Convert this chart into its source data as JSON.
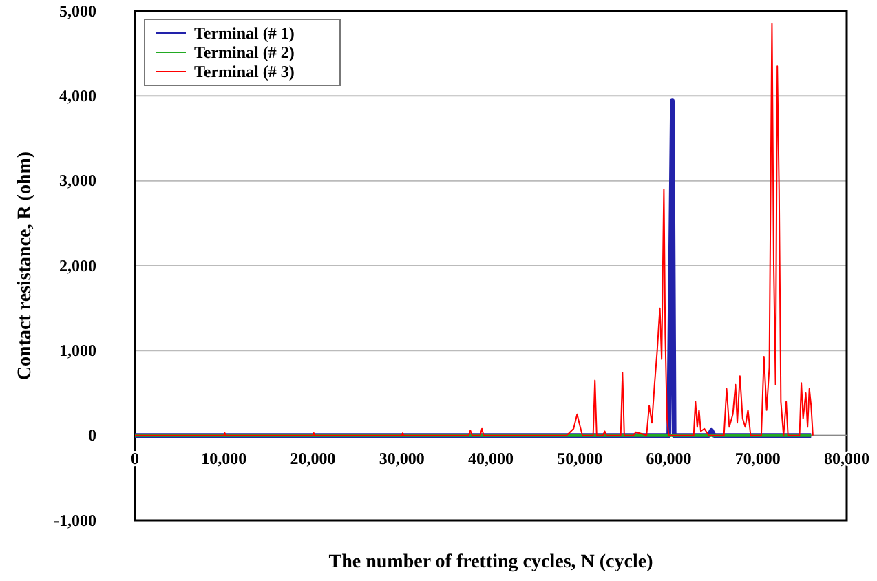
{
  "chart_data": {
    "type": "line",
    "xlabel": "The number of fretting cycles, N (cycle)",
    "ylabel": "Contact resistance, R (ohm)",
    "xlim": [
      0,
      80000
    ],
    "xticks": [
      {
        "value": 0,
        "label": "0"
      },
      {
        "value": 10000,
        "label": "10,000"
      },
      {
        "value": 20000,
        "label": "20,000"
      },
      {
        "value": 30000,
        "label": "30,000"
      },
      {
        "value": 40000,
        "label": "40,000"
      },
      {
        "value": 50000,
        "label": "50,000"
      },
      {
        "value": 60000,
        "label": "60,000"
      },
      {
        "value": 70000,
        "label": "70,000"
      },
      {
        "value": 80000,
        "label": "80,000"
      }
    ],
    "ylim": [
      -1000,
      5000
    ],
    "yticks": [
      {
        "value": -1000,
        "label": "-1,000"
      },
      {
        "value": 0,
        "label": "0"
      },
      {
        "value": 1000,
        "label": "1,000"
      },
      {
        "value": 2000,
        "label": "2,000"
      },
      {
        "value": 3000,
        "label": "3,000"
      },
      {
        "value": 4000,
        "label": "4,000"
      },
      {
        "value": 5000,
        "label": "5,000"
      }
    ],
    "grid": "y",
    "legend": "top left",
    "marker": "none",
    "line_style": "solid",
    "series": [
      {
        "name": "Terminal (# 1)",
        "color": "#2222aa",
        "x": [
          0,
          60000,
          60400,
          60600,
          64500,
          64800,
          65100,
          76000
        ],
        "values": [
          0,
          0,
          3940,
          0,
          0,
          60,
          0,
          0
        ]
      },
      {
        "name": "Terminal (# 2)",
        "color": "#22aa22",
        "x": [
          0,
          76000
        ],
        "values": [
          0,
          0
        ]
      },
      {
        "name": "Terminal (# 3)",
        "color": "#ff0000",
        "x": [
          0,
          10000,
          10100,
          10200,
          20000,
          20100,
          20200,
          30000,
          30100,
          30200,
          37500,
          37700,
          37900,
          38800,
          39000,
          39200,
          48500,
          49300,
          49700,
          50000,
          50300,
          51500,
          51700,
          51900,
          52600,
          52800,
          53000,
          54600,
          54800,
          55000,
          56000,
          56300,
          57000,
          57500,
          57800,
          58100,
          58400,
          58700,
          59000,
          59200,
          59450,
          59600,
          59800,
          60000,
          62800,
          63000,
          63200,
          63400,
          63600,
          64000,
          64500,
          66200,
          66500,
          66800,
          67200,
          67500,
          67700,
          68000,
          68300,
          68600,
          68900,
          69200,
          70400,
          70700,
          71000,
          71300,
          71600,
          71800,
          72000,
          72200,
          72400,
          72600,
          72900,
          73200,
          73400,
          74700,
          74900,
          75100,
          75400,
          75600,
          75800,
          76000,
          76200
        ],
        "values": [
          0,
          0,
          30,
          0,
          0,
          30,
          0,
          0,
          30,
          0,
          0,
          60,
          0,
          0,
          80,
          0,
          0,
          80,
          250,
          120,
          0,
          0,
          650,
          0,
          0,
          50,
          0,
          0,
          740,
          0,
          0,
          40,
          20,
          0,
          350,
          150,
          600,
          1000,
          1500,
          900,
          2900,
          1200,
          200,
          0,
          0,
          400,
          100,
          300,
          50,
          80,
          0,
          0,
          550,
          100,
          250,
          600,
          150,
          700,
          200,
          100,
          300,
          0,
          0,
          930,
          300,
          800,
          4850,
          2000,
          600,
          4350,
          2900,
          400,
          0,
          400,
          0,
          0,
          620,
          200,
          500,
          100,
          550,
          350,
          0
        ]
      }
    ]
  }
}
